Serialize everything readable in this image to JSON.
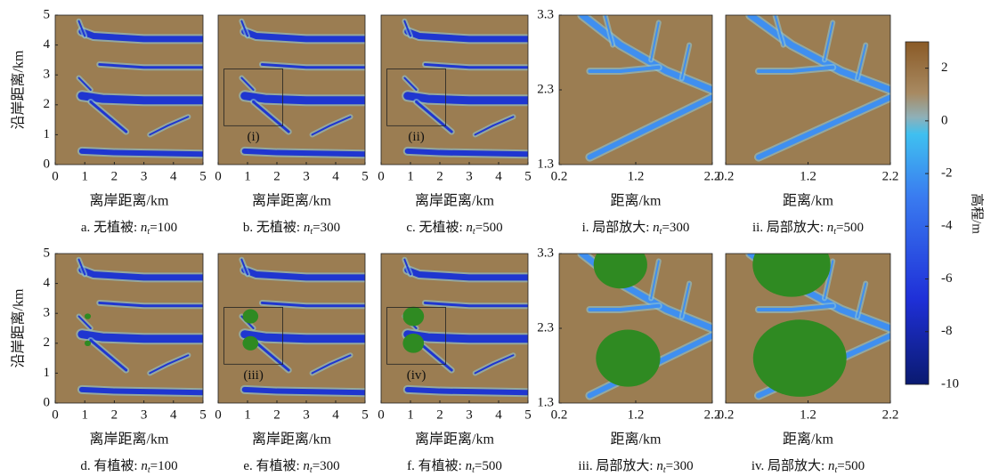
{
  "chart_data": [
    {
      "type": "image",
      "xlabel": "离岸距离/km",
      "ylabel": "沿岸距离/km",
      "xlim": [
        0,
        5
      ],
      "ylim": [
        0,
        5
      ],
      "xticks": [
        0,
        1,
        2,
        3,
        4,
        5
      ],
      "yticks": [
        0,
        1,
        2,
        3,
        4,
        5
      ],
      "caption": {
        "prefix": "a. 无植被: ",
        "var": "n",
        "sub": "t",
        "suffix": "=100"
      }
    },
    {
      "type": "image",
      "xlabel": "离岸距离/km",
      "xlim": [
        0,
        5
      ],
      "ylim": [
        0,
        5
      ],
      "xticks": [
        0,
        1,
        2,
        3,
        4,
        5
      ],
      "inset_label": "(i)",
      "caption": {
        "prefix": "b. 无植被: ",
        "var": "n",
        "sub": "t",
        "suffix": "=300"
      }
    },
    {
      "type": "image",
      "xlabel": "离岸距离/km",
      "xlim": [
        0,
        5
      ],
      "ylim": [
        0,
        5
      ],
      "xticks": [
        0,
        1,
        2,
        3,
        4,
        5
      ],
      "inset_label": "(ii)",
      "caption": {
        "prefix": "c. 无植被: ",
        "var": "n",
        "sub": "t",
        "suffix": "=500"
      }
    },
    {
      "type": "image",
      "xlabel": "距离/km",
      "xlim": [
        0.2,
        2.2
      ],
      "ylim": [
        1.3,
        3.3
      ],
      "xticks": [
        0.2,
        1.2,
        2.2
      ],
      "yticks": [
        1.3,
        2.3,
        3.3
      ],
      "caption": {
        "prefix": "i. 局部放大: ",
        "var": "n",
        "sub": "t",
        "suffix": "=300"
      }
    },
    {
      "type": "image",
      "xlabel": "距离/km",
      "xlim": [
        0.2,
        2.2
      ],
      "ylim": [
        1.3,
        3.3
      ],
      "xticks": [
        0.2,
        1.2,
        2.2
      ],
      "caption": {
        "prefix": "ii. 局部放大: ",
        "var": "n",
        "sub": "t",
        "suffix": "=500"
      }
    },
    {
      "type": "image",
      "xlabel": "离岸距离/km",
      "ylabel": "沿岸距离/km",
      "xlim": [
        0,
        5
      ],
      "ylim": [
        0,
        5
      ],
      "xticks": [
        0,
        1,
        2,
        3,
        4,
        5
      ],
      "yticks": [
        0,
        1,
        2,
        3,
        4,
        5
      ],
      "caption": {
        "prefix": "d. 有植被: ",
        "var": "n",
        "sub": "t",
        "suffix": "=100"
      }
    },
    {
      "type": "image",
      "xlabel": "离岸距离/km",
      "xlim": [
        0,
        5
      ],
      "ylim": [
        0,
        5
      ],
      "xticks": [
        0,
        1,
        2,
        3,
        4,
        5
      ],
      "inset_label": "(iii)",
      "caption": {
        "prefix": "e. 有植被: ",
        "var": "n",
        "sub": "t",
        "suffix": "=300"
      }
    },
    {
      "type": "image",
      "xlabel": "离岸距离/km",
      "xlim": [
        0,
        5
      ],
      "ylim": [
        0,
        5
      ],
      "xticks": [
        0,
        1,
        2,
        3,
        4,
        5
      ],
      "inset_label": "(iv)",
      "caption": {
        "prefix": "f. 有植被: ",
        "var": "n",
        "sub": "t",
        "suffix": "=500"
      }
    },
    {
      "type": "image",
      "xlabel": "距离/km",
      "xlim": [
        0.2,
        2.2
      ],
      "ylim": [
        1.3,
        3.3
      ],
      "xticks": [
        0.2,
        1.2,
        2.2
      ],
      "yticks": [
        1.3,
        2.3,
        3.3
      ],
      "caption": {
        "prefix": "iii. 局部放大: ",
        "var": "n",
        "sub": "t",
        "suffix": "=300"
      }
    },
    {
      "type": "image",
      "xlabel": "距离/km",
      "xlim": [
        0.2,
        2.2
      ],
      "ylim": [
        1.3,
        3.3
      ],
      "xticks": [
        0.2,
        1.2,
        2.2
      ],
      "caption": {
        "prefix": "iv. 局部放大: ",
        "var": "n",
        "sub": "t",
        "suffix": "=500"
      }
    },
    {
      "type": "colorbar",
      "label": "高程/m",
      "ylim": [
        -10,
        3
      ],
      "yticks": [
        -10,
        -8,
        -6,
        -4,
        -2,
        0,
        2
      ]
    }
  ]
}
